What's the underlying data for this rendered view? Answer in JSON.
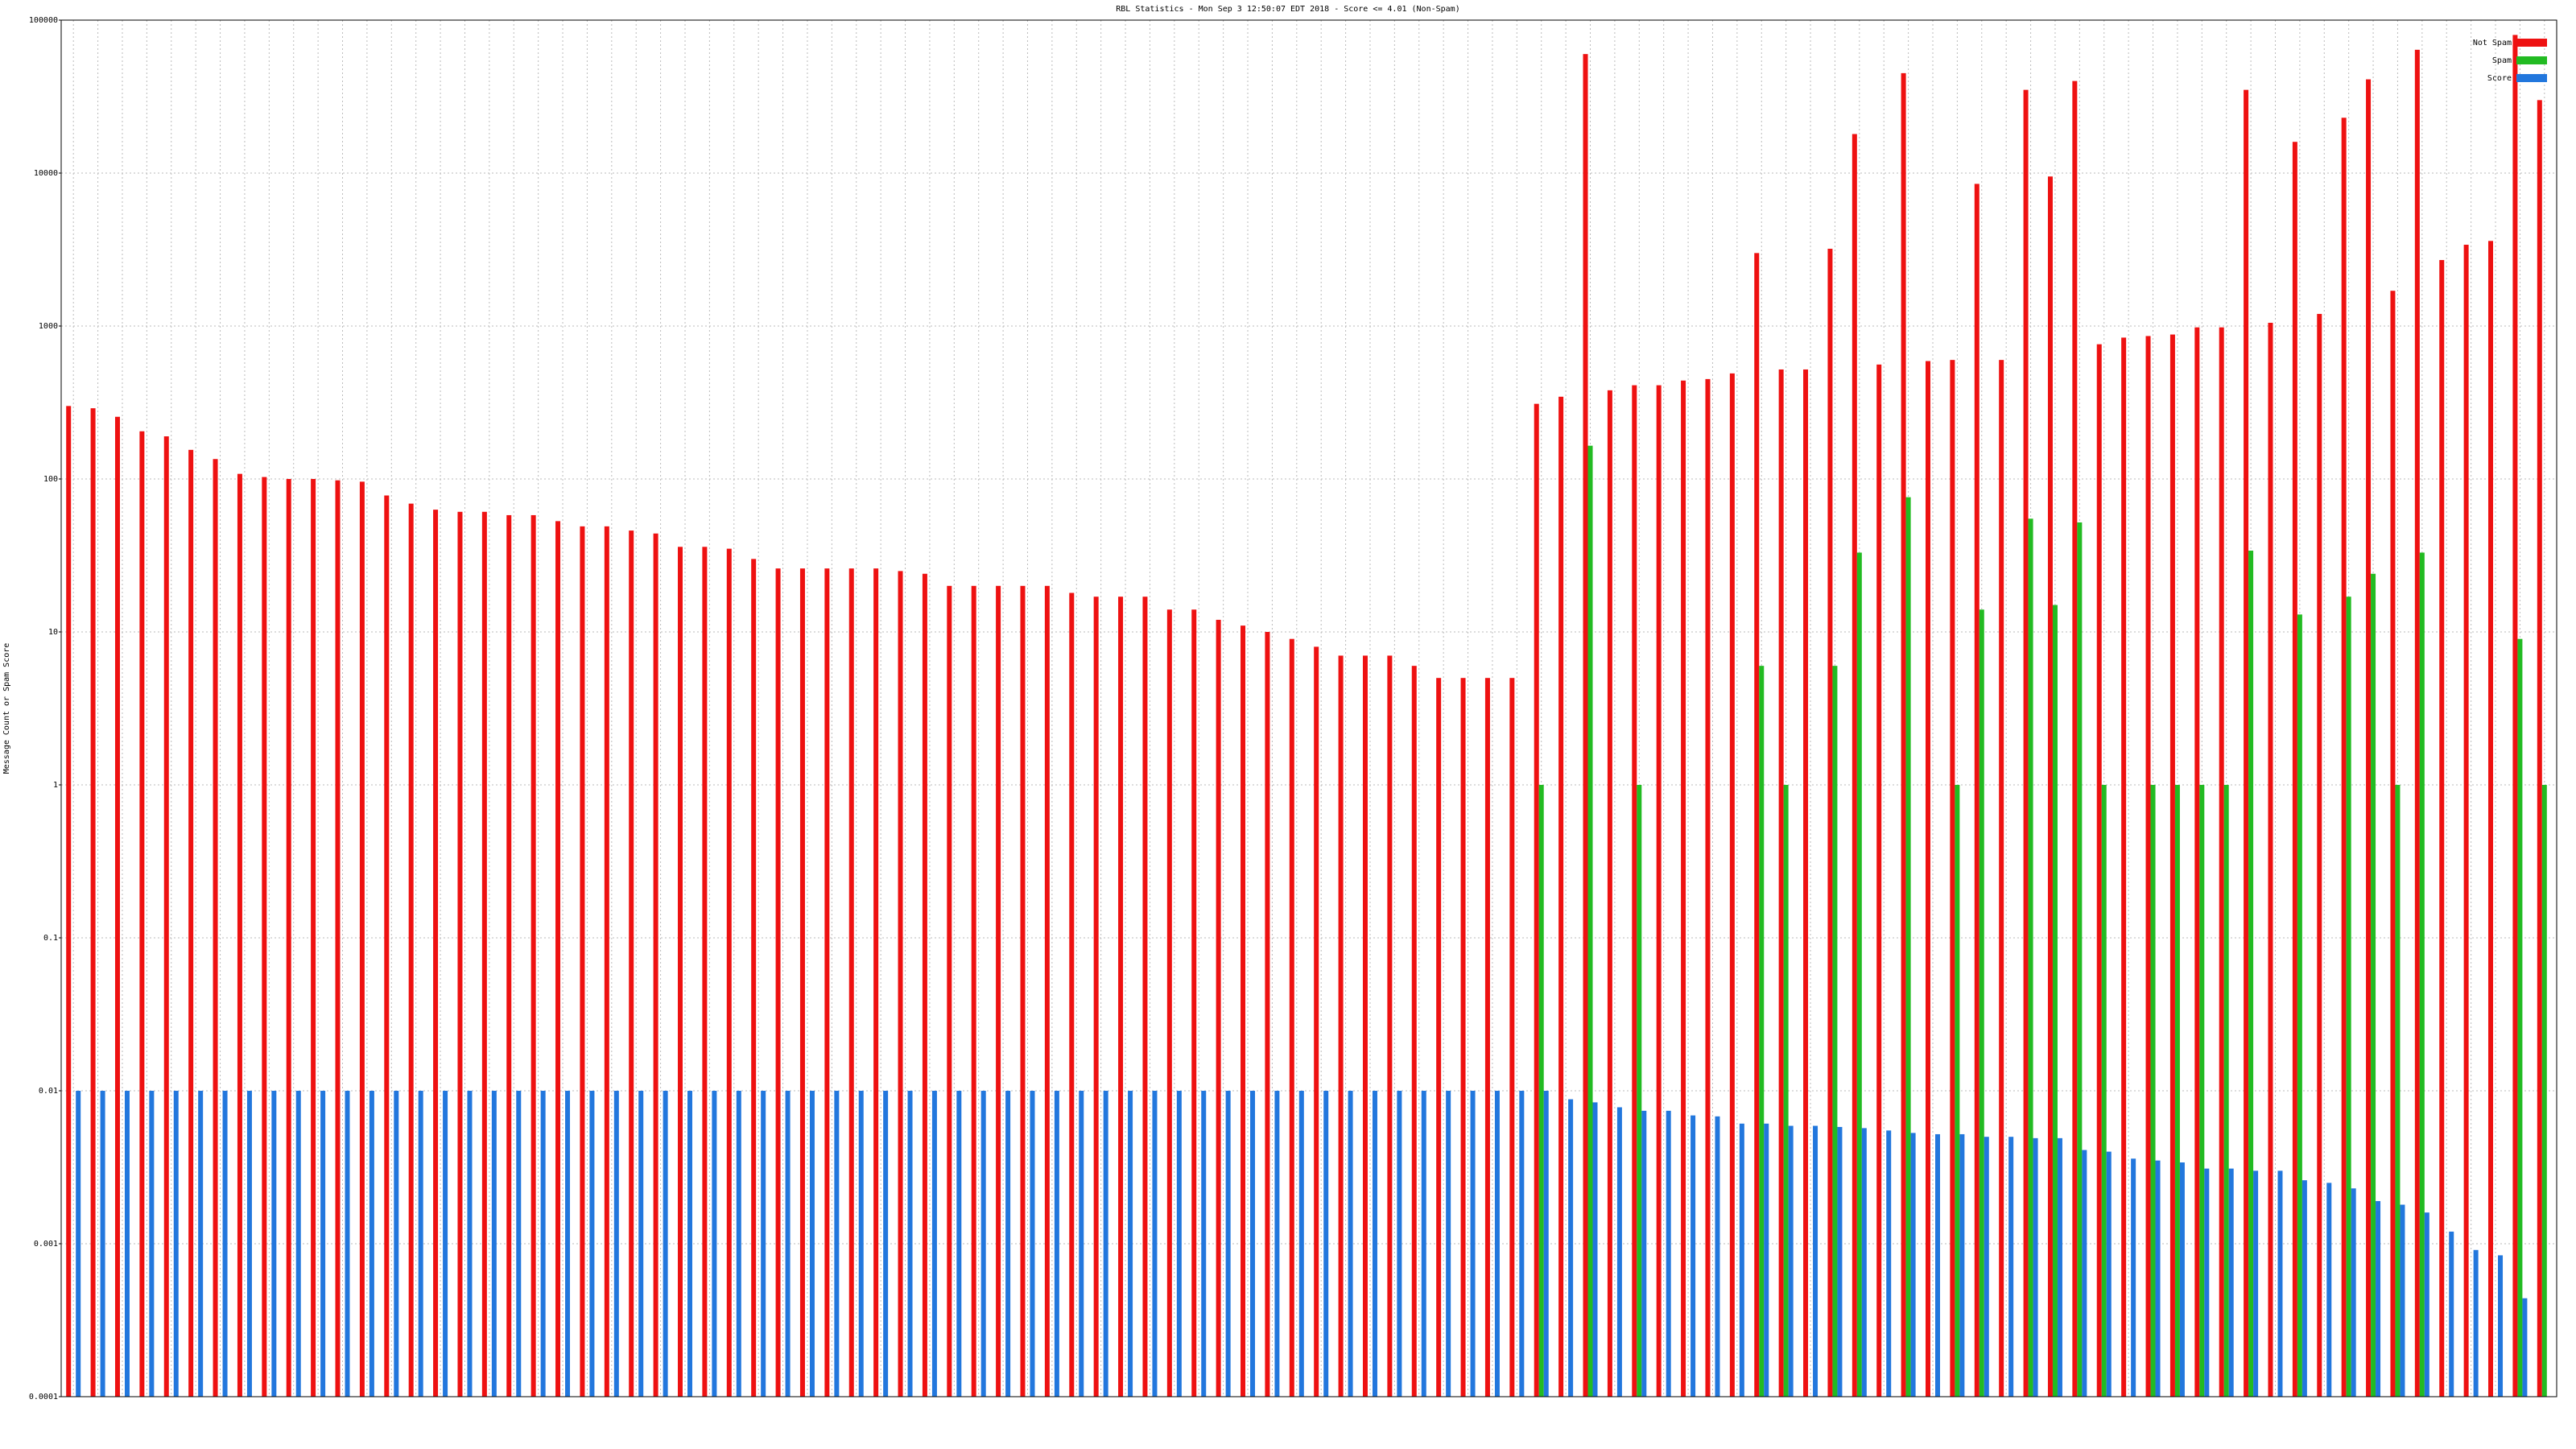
{
  "chart_data": {
    "type": "bar",
    "title": "RBL Statistics - Mon Sep  3 12:50:07 EDT 2018 - Score <= 4.01 (Non-Spam)",
    "y_label": "Message Count or Spam Score",
    "log_scale": true,
    "grid": true,
    "legend": "upper right",
    "categories": [
      null,
      null,
      null,
      null,
      null,
      null,
      null,
      null,
      null,
      null,
      null,
      null,
      null,
      null,
      null,
      null,
      null,
      null,
      null,
      null,
      null,
      null,
      null,
      null,
      null,
      null,
      null,
      null,
      null,
      null,
      null,
      null,
      null,
      null,
      null,
      null,
      null,
      null,
      null,
      null,
      null,
      null,
      null,
      null,
      null,
      null,
      null,
      null,
      null,
      null,
      null,
      null,
      null,
      null,
      null,
      null,
      null,
      null,
      null,
      null,
      null,
      null,
      null,
      null,
      null,
      null,
      null,
      null,
      null,
      null,
      null,
      null,
      null,
      null,
      null,
      null,
      null,
      null,
      null,
      null,
      null,
      null,
      null,
      null,
      null,
      null,
      null,
      null,
      null,
      null,
      null,
      null,
      null,
      null,
      null,
      null,
      null,
      null,
      null,
      null,
      null,
      null
    ],
    "series": [
      {
        "name": "Not Spam",
        "color": "#ee1111",
        "values": [
          300,
          290,
          255,
          205,
          190,
          155,
          135,
          108,
          103,
          100,
          100,
          98,
          96,
          78,
          69,
          63,
          61,
          61,
          58,
          58,
          53,
          49,
          49,
          46,
          44,
          36,
          36,
          35,
          30,
          26,
          26,
          26,
          26,
          26,
          25,
          24,
          20,
          20,
          20,
          20,
          20,
          18,
          17,
          17,
          17,
          14,
          14,
          12,
          11,
          10,
          9,
          8,
          7,
          7,
          7,
          6,
          5,
          5,
          5,
          5,
          310,
          345,
          60000,
          380,
          410,
          410,
          440,
          450,
          490,
          3000,
          520,
          520,
          3200,
          18000,
          560,
          45000,
          590,
          600,
          8500,
          600,
          35000,
          9500,
          40000,
          760,
          840,
          860,
          880,
          980,
          980,
          35000,
          1050,
          16000,
          1200,
          23000,
          41000,
          1700,
          64000,
          2700,
          3400,
          3600,
          80000,
          30000
        ]
      },
      {
        "name": "Spam",
        "color": "#22bb22",
        "values": [
          null,
          null,
          null,
          null,
          null,
          null,
          null,
          null,
          null,
          null,
          null,
          null,
          null,
          null,
          null,
          null,
          null,
          null,
          null,
          null,
          null,
          null,
          null,
          null,
          null,
          null,
          null,
          null,
          null,
          null,
          null,
          null,
          null,
          null,
          null,
          null,
          null,
          null,
          null,
          null,
          null,
          null,
          null,
          null,
          null,
          null,
          null,
          null,
          null,
          null,
          null,
          null,
          null,
          null,
          null,
          null,
          null,
          null,
          null,
          null,
          1,
          null,
          165,
          null,
          1,
          null,
          null,
          null,
          null,
          6,
          1,
          null,
          6,
          33,
          null,
          76,
          null,
          1,
          14,
          null,
          55,
          15,
          52,
          1,
          null,
          1,
          1,
          1,
          1,
          34,
          null,
          13,
          null,
          17,
          24,
          1,
          33,
          null,
          null,
          null,
          9,
          1
        ]
      },
      {
        "name": "Score",
        "color": "#2277dd",
        "values": [
          0.01,
          0.01,
          0.01,
          0.01,
          0.01,
          0.01,
          0.01,
          0.01,
          0.01,
          0.01,
          0.01,
          0.01,
          0.01,
          0.01,
          0.01,
          0.01,
          0.01,
          0.01,
          0.01,
          0.01,
          0.01,
          0.01,
          0.01,
          0.01,
          0.01,
          0.01,
          0.01,
          0.01,
          0.01,
          0.01,
          0.01,
          0.01,
          0.01,
          0.01,
          0.01,
          0.01,
          0.01,
          0.01,
          0.01,
          0.01,
          0.01,
          0.01,
          0.01,
          0.01,
          0.01,
          0.01,
          0.01,
          0.01,
          0.01,
          0.01,
          0.01,
          0.01,
          0.01,
          0.01,
          0.01,
          0.01,
          0.01,
          0.01,
          0.01,
          0.01,
          0.01,
          0.0088,
          0.0084,
          0.0078,
          0.0074,
          0.0074,
          0.0069,
          0.0068,
          0.0061,
          0.0061,
          0.0059,
          0.0059,
          0.0058,
          0.0057,
          0.0055,
          0.0053,
          0.0052,
          0.0052,
          0.005,
          0.005,
          0.0049,
          0.0049,
          0.0041,
          0.004,
          0.0036,
          0.0035,
          0.0034,
          0.0031,
          0.0031,
          0.003,
          0.003,
          0.0026,
          0.0025,
          0.0023,
          0.0019,
          0.0018,
          0.0016,
          0.0012,
          0.00091,
          0.00084,
          0.00044,
          null
        ]
      }
    ],
    "ylim": [
      0.0001,
      100000
    ],
    "yticks": [
      0.0001,
      0.001,
      0.01,
      0.1,
      1,
      10,
      100,
      1000,
      10000,
      100000
    ]
  }
}
